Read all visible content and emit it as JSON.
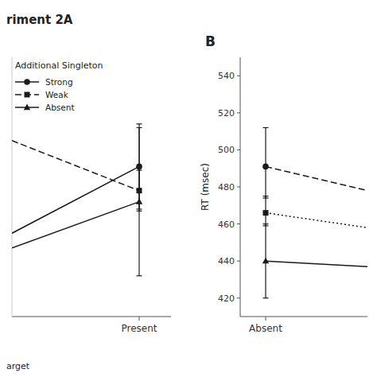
{
  "chart_data": [
    {
      "type": "line",
      "title": "riment 2A",
      "xlim": [
        -2.0,
        0.5
      ],
      "ylim": [
        410,
        550
      ],
      "xticks": [
        {
          "value": 0.0,
          "label": "Present"
        }
      ],
      "yticks": [],
      "tick_labels": "x",
      "grid": false,
      "legend": "upper left",
      "legend_title": "Additional Singleton",
      "annotations": [
        "arget"
      ],
      "series": [
        {
          "name": "Strong",
          "color": "#1a1a1a",
          "line_style": "solid",
          "marker": "circle",
          "x": [
            -2.0,
            0.0
          ],
          "values": [
            455,
            491
          ],
          "error_low": [
            null,
            23
          ],
          "error_high": [
            null,
            23
          ]
        },
        {
          "name": "Weak",
          "color": "#1a1a1a",
          "line_style": "longdash",
          "marker": "square",
          "x": [
            -2.0,
            0.0
          ],
          "values": [
            505,
            478
          ],
          "error_low": [
            null,
            11
          ],
          "error_high": [
            null,
            11
          ]
        },
        {
          "name": "Absent",
          "color": "#1a1a1a",
          "line_style": "solid",
          "marker": "triangle",
          "x": [
            -2.0,
            0.0
          ],
          "values": [
            447,
            472
          ],
          "error_low": [
            null,
            40
          ],
          "error_high": [
            null,
            40
          ]
        }
      ]
    },
    {
      "type": "line",
      "title": "B",
      "ylabel": "RT (msec)",
      "xlim": [
        -0.5,
        2.0
      ],
      "ylim": [
        410,
        550
      ],
      "xticks": [
        {
          "value": 0.0,
          "label": "Absent"
        }
      ],
      "yticks": [
        420,
        440,
        460,
        480,
        500,
        520,
        540
      ],
      "grid": false,
      "series": [
        {
          "name": "Strong",
          "color": "#1a1a1a",
          "line_style": "longdash",
          "marker": "circle",
          "x": [
            0.0,
            2.0
          ],
          "values": [
            491,
            478
          ],
          "error_low": [
            17,
            null
          ],
          "error_high": [
            21,
            null
          ]
        },
        {
          "name": "Weak",
          "color": "#1a1a1a",
          "line_style": "dotted",
          "marker": "square",
          "x": [
            0.0,
            2.0
          ],
          "values": [
            466,
            458
          ],
          "error_low": [
            7,
            null
          ],
          "error_high": [
            9,
            null
          ]
        },
        {
          "name": "Absent",
          "color": "#1a1a1a",
          "line_style": "solid",
          "marker": "triangle",
          "x": [
            0.0,
            2.0
          ],
          "values": [
            440,
            437
          ],
          "error_low": [
            20,
            null
          ],
          "error_high": [
            20,
            null
          ]
        }
      ]
    }
  ]
}
